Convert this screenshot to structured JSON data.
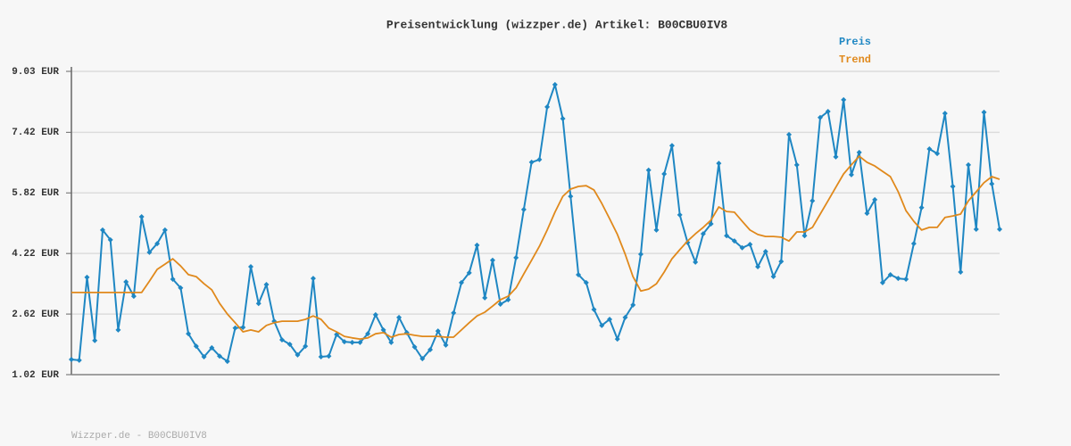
{
  "chart_data": {
    "type": "line",
    "title": "Preisentwicklung (wizzper.de) Artikel: B00CBU0IV8",
    "footer": "Wizzper.de - B00CBU0IV8",
    "categories": [
      null,
      null,
      null,
      null,
      null,
      null,
      null,
      null,
      null,
      null,
      null,
      null,
      null,
      null,
      null,
      null,
      null,
      null,
      null,
      null,
      null,
      null,
      null,
      null,
      null,
      null,
      null,
      null,
      null,
      null,
      null,
      null,
      null,
      null,
      null,
      null,
      null,
      null,
      null,
      null,
      null,
      null,
      null,
      null,
      null,
      null,
      null,
      null,
      null,
      null,
      null,
      null,
      null,
      null,
      null,
      null,
      null,
      null,
      null,
      null,
      null,
      null,
      null,
      null,
      null,
      null,
      null,
      null,
      null,
      null,
      null,
      null,
      null,
      null,
      null,
      null,
      null,
      null,
      null,
      null,
      null,
      null,
      null,
      null,
      null,
      null,
      null,
      null,
      null,
      null,
      null,
      null,
      null,
      null,
      null,
      null,
      null,
      null,
      null,
      null,
      null,
      null,
      null,
      null,
      null,
      null,
      null,
      null,
      null,
      null,
      null,
      null,
      null,
      null,
      null,
      null,
      null,
      null,
      null,
      null
    ],
    "series": [
      {
        "name": "Preis",
        "color": "#1f87c3",
        "markers": true,
        "values": [
          1.42,
          1.4,
          3.59,
          1.92,
          4.84,
          4.58,
          2.2,
          3.47,
          3.09,
          5.19,
          4.25,
          4.48,
          4.84,
          3.54,
          3.31,
          2.1,
          1.77,
          1.49,
          1.73,
          1.51,
          1.37,
          2.25,
          2.27,
          3.87,
          2.9,
          3.4,
          2.43,
          1.94,
          1.82,
          1.54,
          1.77,
          3.56,
          1.49,
          1.51,
          2.08,
          1.89,
          1.87,
          1.87,
          2.1,
          2.6,
          2.2,
          1.87,
          2.53,
          2.13,
          1.75,
          1.44,
          1.68,
          2.17,
          1.8,
          2.65,
          3.45,
          3.71,
          4.44,
          3.05,
          4.04,
          2.88,
          3.0,
          4.11,
          5.38,
          6.63,
          6.7,
          8.09,
          8.68,
          7.78,
          5.73,
          3.66,
          3.45,
          2.74,
          2.32,
          2.48,
          1.96,
          2.53,
          2.86,
          4.2,
          6.42,
          4.84,
          6.32,
          7.07,
          5.24,
          4.51,
          3.99,
          4.74,
          5.0,
          6.6,
          4.69,
          4.55,
          4.37,
          4.46,
          3.87,
          4.27,
          3.61,
          4.01,
          7.36,
          6.56,
          4.69,
          5.61,
          7.81,
          7.97,
          6.77,
          8.28,
          6.3,
          6.89,
          5.28,
          5.64,
          3.45,
          3.66,
          3.56,
          3.54,
          4.48,
          5.43,
          6.98,
          6.86,
          7.92,
          5.99,
          3.73,
          6.56,
          4.86,
          7.95,
          6.06,
          4.86
        ]
      },
      {
        "name": "Trend",
        "color": "#e0891c",
        "markers": false,
        "values": [
          3.19,
          3.19,
          3.19,
          3.19,
          3.19,
          3.19,
          3.19,
          3.19,
          3.19,
          3.19,
          3.49,
          3.8,
          3.94,
          4.08,
          3.89,
          3.66,
          3.61,
          3.42,
          3.26,
          2.9,
          2.62,
          2.39,
          2.15,
          2.2,
          2.15,
          2.32,
          2.39,
          2.43,
          2.43,
          2.43,
          2.48,
          2.57,
          2.48,
          2.25,
          2.15,
          2.03,
          1.99,
          1.96,
          1.99,
          2.1,
          2.13,
          2.01,
          2.08,
          2.1,
          2.06,
          2.03,
          2.03,
          2.03,
          2.01,
          2.01,
          2.2,
          2.39,
          2.57,
          2.67,
          2.83,
          3.0,
          3.09,
          3.31,
          3.68,
          4.04,
          4.41,
          4.84,
          5.31,
          5.73,
          5.92,
          5.99,
          6.01,
          5.9,
          5.54,
          5.14,
          4.72,
          4.2,
          3.61,
          3.23,
          3.28,
          3.42,
          3.73,
          4.08,
          4.32,
          4.55,
          4.74,
          4.91,
          5.1,
          5.45,
          5.33,
          5.31,
          5.07,
          4.84,
          4.72,
          4.67,
          4.67,
          4.65,
          4.55,
          4.79,
          4.79,
          4.91,
          5.26,
          5.61,
          5.97,
          6.32,
          6.56,
          6.79,
          6.63,
          6.53,
          6.39,
          6.25,
          5.85,
          5.35,
          5.07,
          4.84,
          4.91,
          4.91,
          5.17,
          5.21,
          5.26,
          5.61,
          5.85,
          6.09,
          6.25,
          6.18
        ]
      }
    ],
    "ylim": [
      1.02,
      9.03
    ],
    "yticks": [
      {
        "value": 1.02,
        "label": "1.02 EUR"
      },
      {
        "value": 2.62,
        "label": "2.62 EUR"
      },
      {
        "value": 4.22,
        "label": "4.22 EUR"
      },
      {
        "value": 5.82,
        "label": "5.82 EUR"
      },
      {
        "value": 7.42,
        "label": "7.42 EUR"
      },
      {
        "value": 9.03,
        "label": "9.03 EUR"
      }
    ],
    "grid": true
  }
}
